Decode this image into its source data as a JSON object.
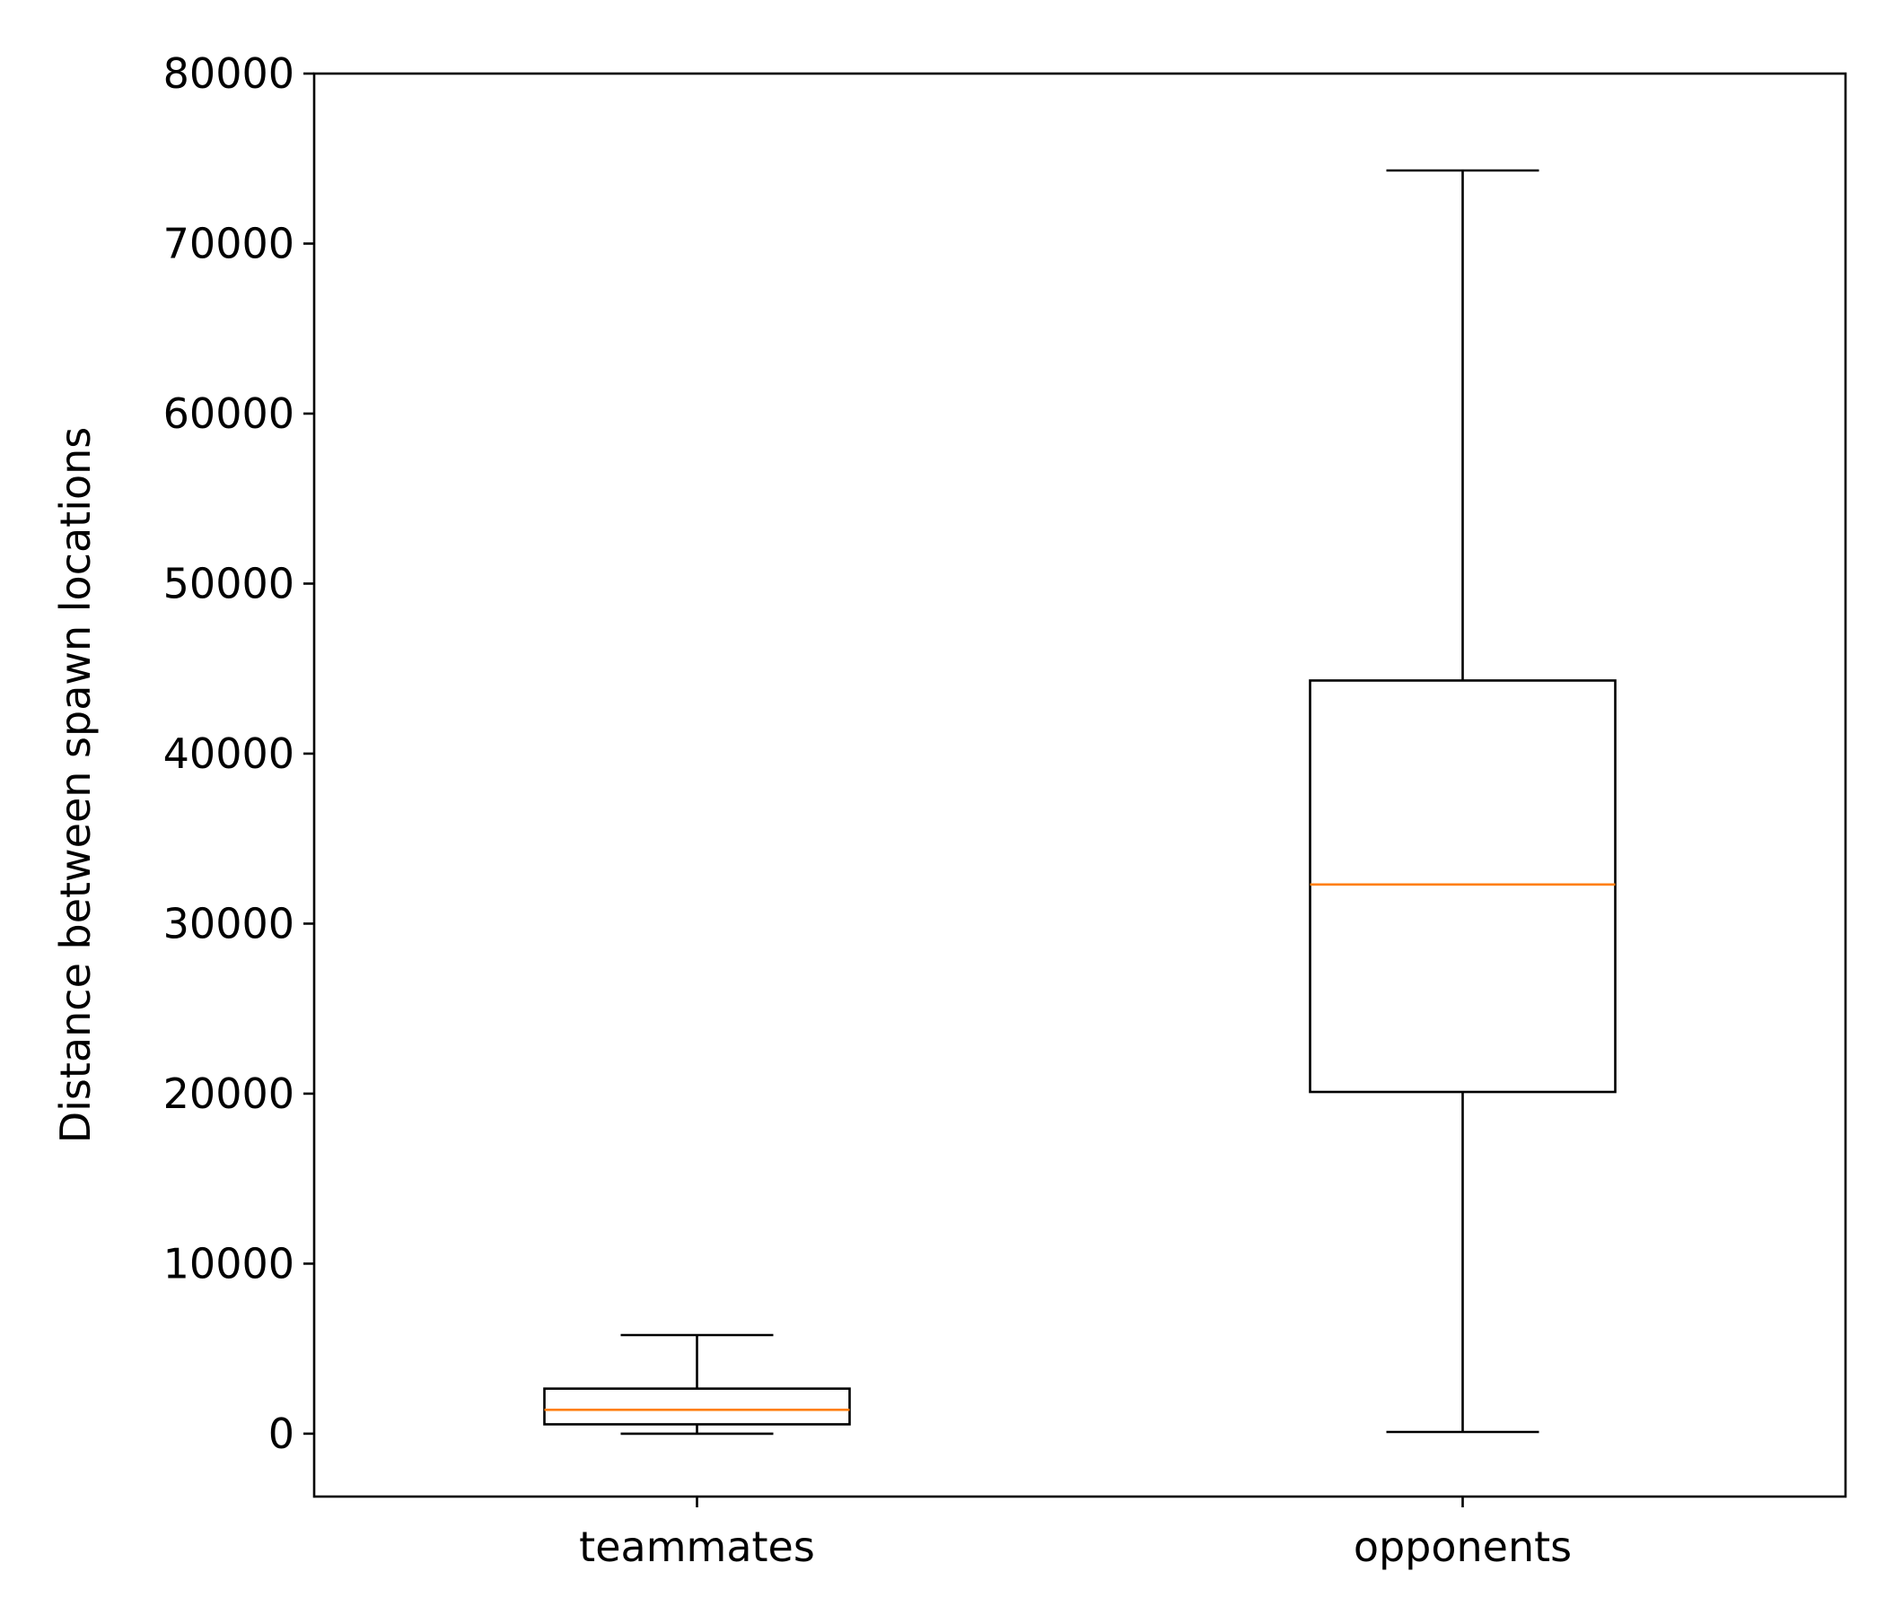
{
  "chart_data": {
    "type": "box",
    "title": "",
    "xlabel": "",
    "ylabel": "Distance between spawn locations",
    "ylim": [
      -3700,
      80000
    ],
    "yticks": [
      0,
      10000,
      20000,
      30000,
      40000,
      50000,
      60000,
      70000,
      80000
    ],
    "ytick_labels": [
      "0",
      "10000",
      "20000",
      "30000",
      "40000",
      "50000",
      "60000",
      "70000",
      "80000"
    ],
    "categories": [
      "teammates",
      "opponents"
    ],
    "grid": false,
    "boxes": [
      {
        "category": "teammates",
        "whisker_low": 0,
        "q1": 550,
        "median": 1400,
        "q3": 2650,
        "whisker_high": 5800
      },
      {
        "category": "opponents",
        "whisker_low": 100,
        "q1": 20100,
        "median": 32300,
        "q3": 44300,
        "whisker_high": 74300
      }
    ],
    "colors": {
      "box": "#000000",
      "median": "#ff7f0e"
    }
  }
}
